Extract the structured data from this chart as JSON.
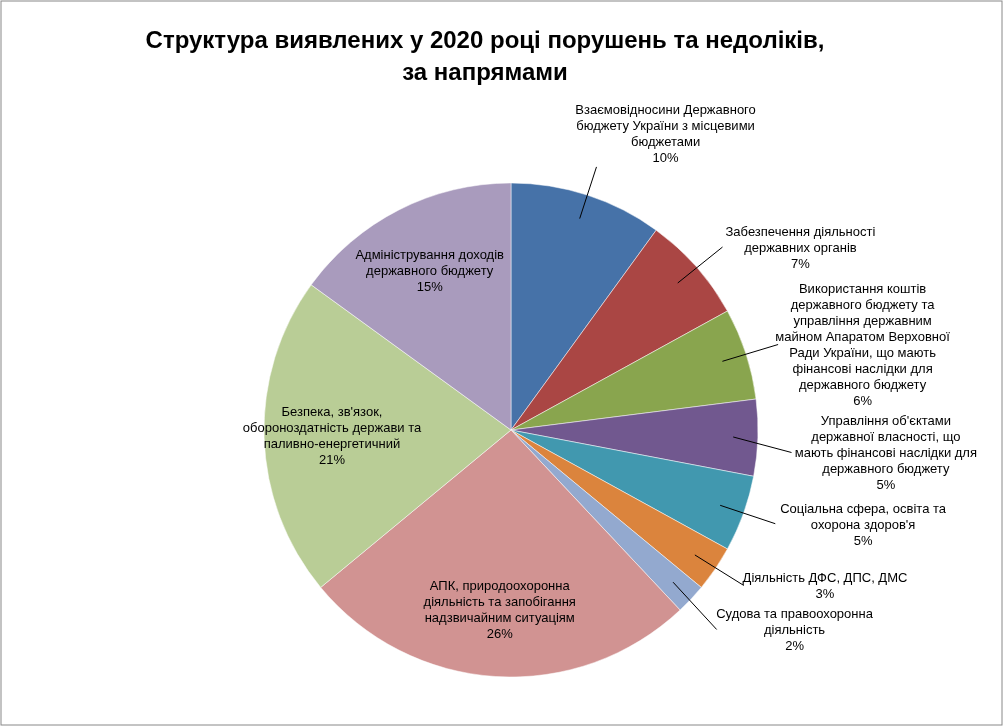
{
  "chart_data": {
    "type": "pie",
    "title": "Структура виявлених у 2020 році порушень та недоліків, за напрямами",
    "categories": [
      "Взаємовідносини Державного бюджету України з місцевими бюджетами",
      "Забезпечення діяльності державних органів",
      "Використання коштів державного бюджету та управління державним майном Апаратом Верховної Ради України, що мають фінансові наслідки для державного бюджету",
      "Управління об'єктами державної власності, що мають фінансові наслідки для державного бюджету",
      "Соціальна сфера, освіта та охорона здоров'я",
      "Діяльність ДФС, ДПС, ДМС",
      "Судова та правоохоронна діяльність",
      "АПК, природоохоронна діяльність та запобігання надзвичайним ситуаціям",
      "Безпека, зв'язок, обороноздатність держави та паливно-енергетичний",
      "Адміністрування доходів державного бюджету"
    ],
    "values": [
      10,
      7,
      6,
      5,
      5,
      3,
      2,
      26,
      21,
      15
    ],
    "value_labels": [
      "10%",
      "7%",
      "6%",
      "5%",
      "5%",
      "3%",
      "2%",
      "26%",
      "21%",
      "15%"
    ],
    "colors": [
      "#4672a8",
      "#aa4644",
      "#89a54e",
      "#71588f",
      "#4198af",
      "#db843d",
      "#93a9cf",
      "#d19392",
      "#b9cd96",
      "#a99bbd"
    ]
  }
}
